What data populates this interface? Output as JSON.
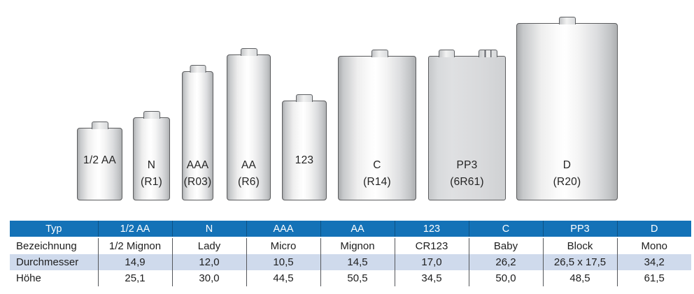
{
  "diagram": {
    "batteries": [
      {
        "label": "1/2 AA",
        "code": ""
      },
      {
        "label": "N",
        "code": "(R1)"
      },
      {
        "label": "AAA",
        "code": "(R03)"
      },
      {
        "label": "AA",
        "code": "(R6)"
      },
      {
        "label": "123",
        "code": ""
      },
      {
        "label": "C",
        "code": "(R14)"
      },
      {
        "label": "PP3",
        "code": "(6R61)"
      },
      {
        "label": "D",
        "code": "(R20)"
      }
    ]
  },
  "table": {
    "header": [
      "Typ",
      "1/2 AA",
      "N",
      "AAA",
      "AA",
      "123",
      "C",
      "PP3",
      "D"
    ],
    "rows": [
      {
        "label": "Bezeichnung",
        "values": [
          "1/2 Mignon",
          "Lady",
          "Micro",
          "Mignon",
          "CR123",
          "Baby",
          "Block",
          "Mono"
        ]
      },
      {
        "label": "Durchmesser",
        "values": [
          "14,9",
          "12,0",
          "10,5",
          "14,5",
          "17,0",
          "26,2",
          "26,5 x 17,5",
          "34,2"
        ]
      },
      {
        "label": "Höhe",
        "values": [
          "25,1",
          "30,0",
          "44,5",
          "50,5",
          "34,5",
          "50,0",
          "48,5",
          "61,5"
        ]
      }
    ]
  },
  "colors": {
    "header_blue": "#1472b7",
    "row_shade": "#cfdaec",
    "battery_border": "#5b5c5e"
  }
}
